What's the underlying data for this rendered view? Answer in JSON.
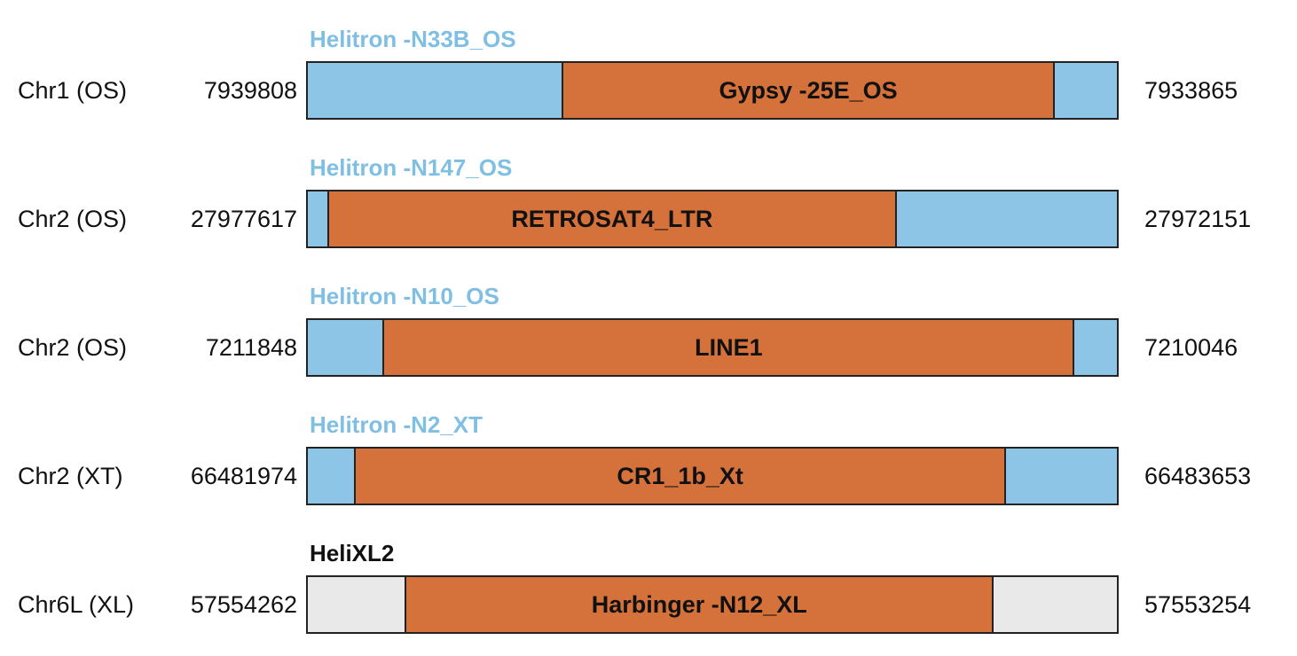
{
  "colors": {
    "helitron_blue": "#8CC5E5",
    "insert_orange": "#D5713B",
    "flank_gray": "#E9E9E9",
    "title_blue": "#7FBFE4",
    "title_black": "#111111",
    "segment_border": "#222222"
  },
  "rows": [
    {
      "chrom": "Chr1 (OS)",
      "left_coord": "7939808",
      "right_coord": "7933865",
      "title": "Helitron -N33B_OS",
      "title_color": "blue",
      "segments": [
        {
          "name": "helitron-left-arm",
          "color": "blue",
          "width_pct": 31.5,
          "label": ""
        },
        {
          "name": "nested-insert",
          "color": "orange",
          "width_pct": 60.5,
          "label": "Gypsy -25E_OS"
        },
        {
          "name": "helitron-right-arm",
          "color": "blue",
          "width_pct": 8.0,
          "label": ""
        }
      ]
    },
    {
      "chrom": "Chr2 (OS)",
      "left_coord": "27977617",
      "right_coord": "27972151",
      "title": "Helitron -N147_OS",
      "title_color": "blue",
      "segments": [
        {
          "name": "helitron-left-arm",
          "color": "blue",
          "width_pct": 2.8,
          "label": ""
        },
        {
          "name": "nested-insert",
          "color": "orange",
          "width_pct": 69.8,
          "label": "RETROSAT4_LTR"
        },
        {
          "name": "helitron-right-arm",
          "color": "blue",
          "width_pct": 27.4,
          "label": ""
        }
      ]
    },
    {
      "chrom": "Chr2 (OS)",
      "left_coord": "7211848",
      "right_coord": "7210046",
      "title": "Helitron -N10_OS",
      "title_color": "blue",
      "segments": [
        {
          "name": "helitron-left-arm",
          "color": "blue",
          "width_pct": 9.6,
          "label": ""
        },
        {
          "name": "nested-insert",
          "color": "orange",
          "width_pct": 84.8,
          "label": "LINE1"
        },
        {
          "name": "helitron-right-arm",
          "color": "blue",
          "width_pct": 5.6,
          "label": ""
        }
      ]
    },
    {
      "chrom": "Chr2 (XT)",
      "left_coord": "66481974",
      "right_coord": "66483653",
      "title": "Helitron -N2_XT",
      "title_color": "blue",
      "segments": [
        {
          "name": "helitron-left-arm",
          "color": "blue",
          "width_pct": 6.1,
          "label": ""
        },
        {
          "name": "nested-insert",
          "color": "orange",
          "width_pct": 79.9,
          "label": "CR1_1b_Xt"
        },
        {
          "name": "helitron-right-arm",
          "color": "blue",
          "width_pct": 14.0,
          "label": ""
        }
      ]
    },
    {
      "chrom": "Chr6L (XL)",
      "left_coord": "57554262",
      "right_coord": "57553254",
      "title": "HeliXL2",
      "title_color": "black",
      "segments": [
        {
          "name": "helitron-left-arm",
          "color": "gray",
          "width_pct": 12.3,
          "label": ""
        },
        {
          "name": "nested-insert",
          "color": "orange",
          "width_pct": 72.2,
          "label": "Harbinger -N12_XL"
        },
        {
          "name": "helitron-right-arm",
          "color": "gray",
          "width_pct": 15.5,
          "label": ""
        }
      ]
    }
  ]
}
